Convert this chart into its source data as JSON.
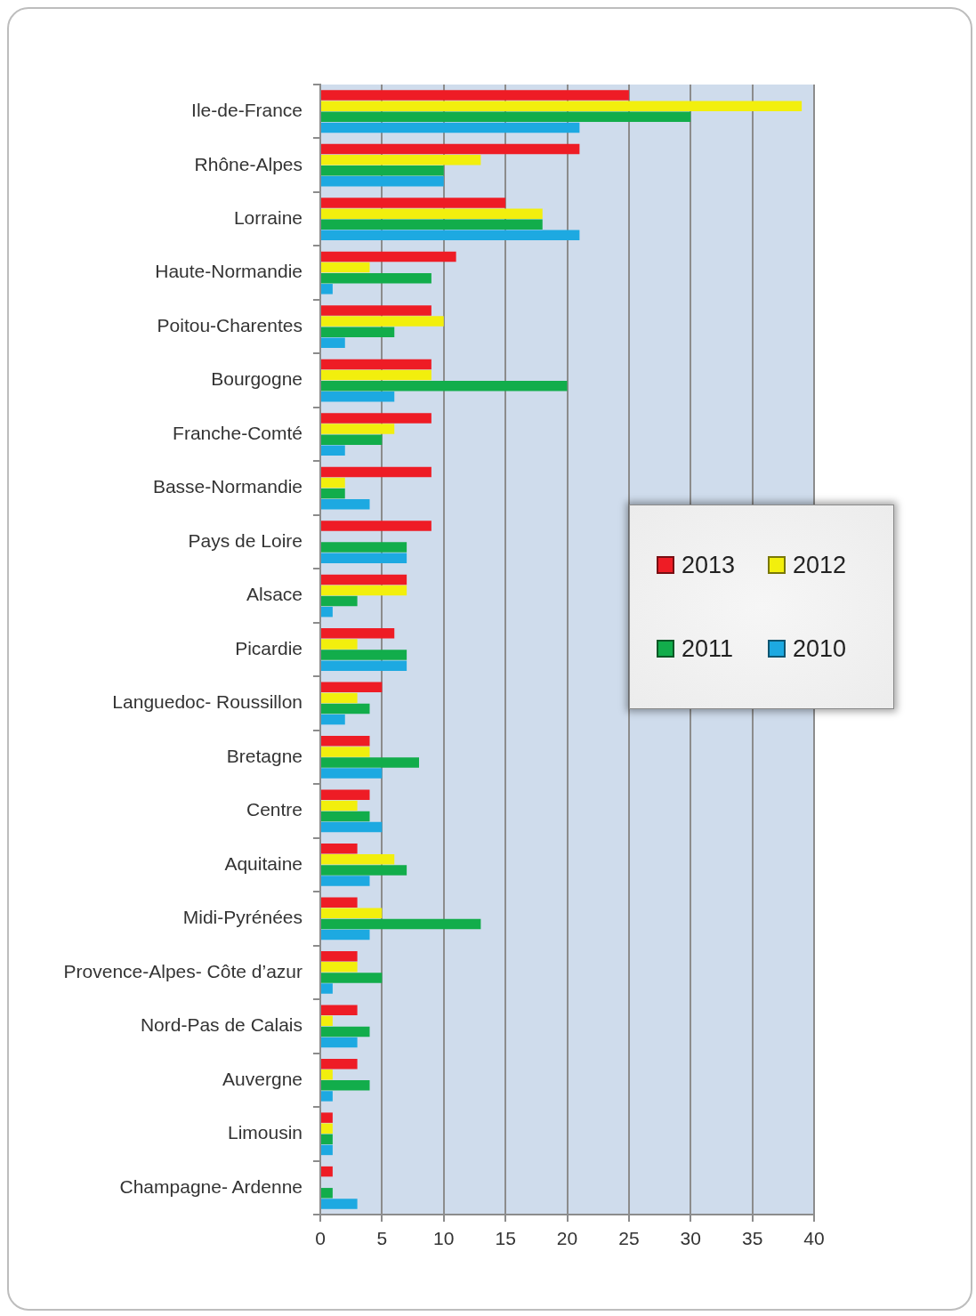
{
  "chart_data": {
    "type": "bar",
    "orientation": "horizontal",
    "categories": [
      "Ile-de-France",
      "Rhône-Alpes",
      "Lorraine",
      "Haute-Normandie",
      "Poitou-Charentes",
      "Bourgogne",
      "Franche-Comté",
      "Basse-Normandie",
      "Pays de Loire",
      "Alsace",
      "Picardie",
      "Languedoc- Roussillon",
      "Bretagne",
      "Centre",
      "Aquitaine",
      "Midi-Pyrénées",
      "Provence-Alpes- Côte d’azur",
      "Nord-Pas de Calais",
      "Auvergne",
      "Limousin",
      "Champagne- Ardenne"
    ],
    "series": [
      {
        "name": "2013",
        "color": "#ee1c25",
        "values": [
          25,
          21,
          15,
          11,
          9,
          9,
          9,
          9,
          9,
          7,
          6,
          5,
          4,
          4,
          3,
          3,
          3,
          3,
          3,
          1,
          1
        ]
      },
      {
        "name": "2012",
        "color": "#f2ef0d",
        "values": [
          39,
          13,
          18,
          4,
          10,
          9,
          6,
          2,
          0,
          7,
          3,
          3,
          4,
          3,
          6,
          5,
          3,
          1,
          1,
          1,
          0
        ]
      },
      {
        "name": "2011",
        "color": "#12ad4b",
        "values": [
          30,
          10,
          18,
          9,
          6,
          20,
          5,
          2,
          7,
          3,
          7,
          4,
          8,
          4,
          7,
          13,
          5,
          4,
          4,
          1,
          1
        ]
      },
      {
        "name": "2010",
        "color": "#1da9e1",
        "values": [
          21,
          10,
          21,
          1,
          2,
          6,
          2,
          4,
          7,
          1,
          7,
          2,
          5,
          5,
          4,
          4,
          1,
          3,
          1,
          1,
          3
        ]
      }
    ],
    "xlim": [
      0,
      40
    ],
    "xticks": [
      0,
      5,
      10,
      15,
      20,
      25,
      30,
      35,
      40
    ],
    "grid": "x",
    "legend": "right"
  }
}
